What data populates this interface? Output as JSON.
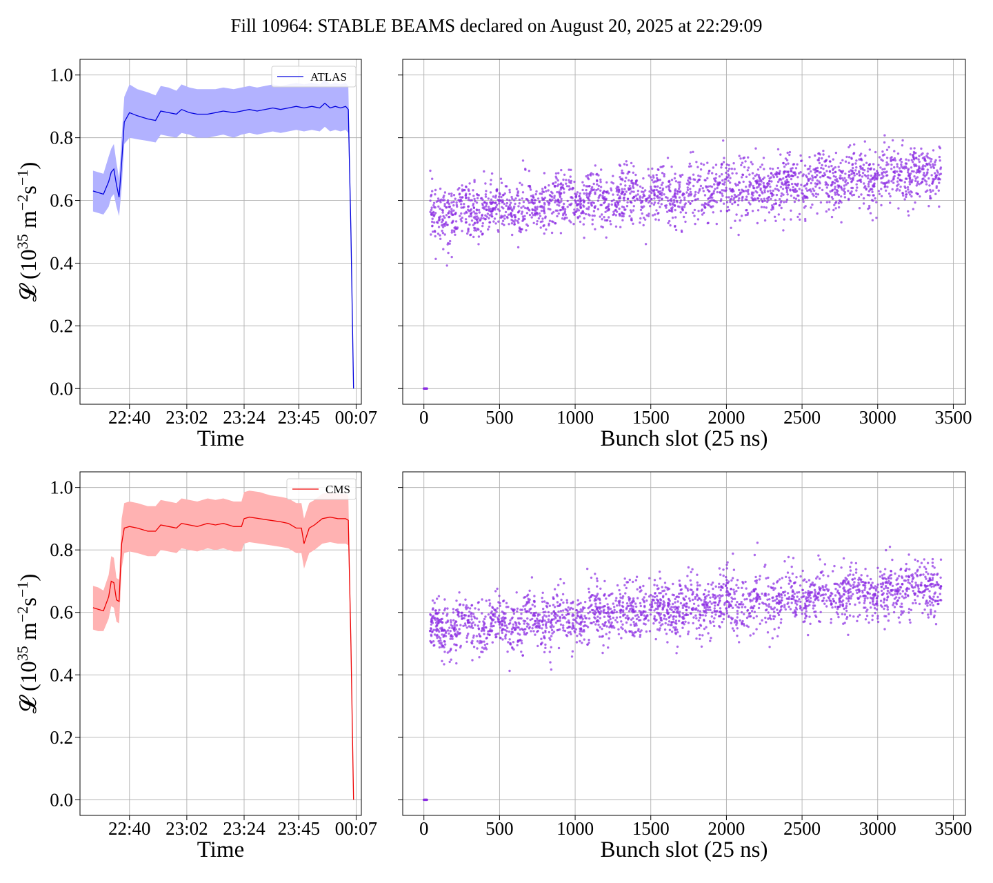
{
  "title": "Fill 10964: STABLE BEAMS declared on August 20, 2025 at 22:29:09",
  "colors": {
    "atlas": "#0000dd",
    "atlas_band": "#b2b2ff",
    "cms": "#ee0000",
    "cms_band": "#ffb2b2",
    "scatter": "#8a2be2"
  },
  "chart_data": [
    {
      "type": "area",
      "legend": "ATLAS",
      "legend_position": "top-right",
      "xlabel": "Time",
      "ylabel_parts": [
        "𝓛 (10",
        "35",
        " m",
        "−2",
        "s",
        "−1",
        ")"
      ],
      "xlim": [
        "22:21",
        "00:09"
      ],
      "ylim": [
        -0.05,
        1.05
      ],
      "xticks": [
        "22:40",
        "23:02",
        "23:24",
        "23:45",
        "00:07"
      ],
      "yticks": [
        "0.0",
        "0.2",
        "0.4",
        "0.6",
        "0.8",
        "1.0"
      ],
      "grid": true,
      "series": [
        {
          "x": [
            "22:26",
            "22:30",
            "22:32",
            "22:33",
            "22:34",
            "22:35",
            "22:36",
            "22:37",
            "22:38",
            "22:40",
            "22:43",
            "22:47",
            "22:50",
            "22:52",
            "22:55",
            "22:58",
            "23:00",
            "23:03",
            "23:06",
            "23:10",
            "23:13",
            "23:16",
            "23:20",
            "23:23",
            "23:26",
            "23:29",
            "23:32",
            "23:35",
            "23:38",
            "23:41",
            "23:44",
            "23:47",
            "23:50",
            "23:53",
            "23:55",
            "23:57",
            "23:59",
            "00:01",
            "00:03",
            "00:04",
            "00:05",
            "00:06"
          ],
          "y": [
            0.63,
            0.62,
            0.66,
            0.69,
            0.7,
            0.65,
            0.61,
            0.72,
            0.85,
            0.88,
            0.87,
            0.86,
            0.855,
            0.885,
            0.88,
            0.875,
            0.89,
            0.88,
            0.875,
            0.875,
            0.88,
            0.885,
            0.88,
            0.885,
            0.89,
            0.885,
            0.89,
            0.895,
            0.89,
            0.895,
            0.9,
            0.895,
            0.9,
            0.895,
            0.91,
            0.895,
            0.9,
            0.895,
            0.9,
            0.89,
            0.5,
            0.0
          ],
          "lower": [
            0.565,
            0.555,
            0.58,
            0.61,
            0.62,
            0.58,
            0.55,
            0.64,
            0.78,
            0.8,
            0.795,
            0.79,
            0.785,
            0.81,
            0.805,
            0.8,
            0.815,
            0.81,
            0.8,
            0.8,
            0.805,
            0.81,
            0.8,
            0.81,
            0.815,
            0.81,
            0.815,
            0.82,
            0.815,
            0.82,
            0.825,
            0.82,
            0.825,
            0.82,
            0.835,
            0.82,
            0.825,
            0.82,
            0.825,
            0.815,
            0.45,
            0.0
          ],
          "upper": [
            0.695,
            0.685,
            0.74,
            0.765,
            0.78,
            0.72,
            0.67,
            0.8,
            0.93,
            0.97,
            0.955,
            0.945,
            0.935,
            0.965,
            0.96,
            0.95,
            0.97,
            0.96,
            0.955,
            0.955,
            0.955,
            0.96,
            0.955,
            0.96,
            0.965,
            0.96,
            0.965,
            0.97,
            0.965,
            0.97,
            0.975,
            0.97,
            0.975,
            0.97,
            0.985,
            0.97,
            0.975,
            0.97,
            0.975,
            0.965,
            0.55,
            0.0
          ]
        }
      ]
    },
    {
      "type": "scatter",
      "xlabel": "Bunch slot (25 ns)",
      "xlim": [
        -140,
        3580
      ],
      "ylim": [
        -0.05,
        1.05
      ],
      "xticks": [
        "0",
        "500",
        "1000",
        "1500",
        "2000",
        "2500",
        "3000",
        "3500"
      ],
      "grid": true,
      "points": {
        "x_range": [
          40,
          3420
        ],
        "mean_start": 0.555,
        "mean_end": 0.69,
        "spread": 0.045,
        "count": 2400,
        "zero_points": [
          0,
          0.0,
          20,
          0.0
        ]
      }
    },
    {
      "type": "area",
      "legend": "CMS",
      "legend_position": "top-right",
      "xlabel": "Time",
      "ylabel_parts": [
        "𝓛 (10",
        "35",
        " m",
        "−2",
        "s",
        "−1",
        ")"
      ],
      "xlim": [
        "22:21",
        "00:09"
      ],
      "ylim": [
        -0.05,
        1.05
      ],
      "xticks": [
        "22:40",
        "23:02",
        "23:24",
        "23:45",
        "00:07"
      ],
      "yticks": [
        "0.0",
        "0.2",
        "0.4",
        "0.6",
        "0.8",
        "1.0"
      ],
      "grid": true,
      "series": [
        {
          "x": [
            "22:26",
            "22:28",
            "22:30",
            "22:32",
            "22:33",
            "22:34",
            "22:35",
            "22:36",
            "22:37",
            "22:38",
            "22:40",
            "22:43",
            "22:47",
            "22:50",
            "22:52",
            "22:55",
            "22:58",
            "23:00",
            "23:03",
            "23:06",
            "23:10",
            "23:13",
            "23:16",
            "23:20",
            "23:23",
            "23:24",
            "23:26",
            "23:30",
            "23:34",
            "23:38",
            "23:41",
            "23:44",
            "23:46",
            "23:47",
            "23:49",
            "23:51",
            "23:54",
            "23:57",
            "00:00",
            "00:03",
            "00:04",
            "00:05",
            "00:06"
          ],
          "y": [
            0.615,
            0.61,
            0.605,
            0.65,
            0.7,
            0.695,
            0.64,
            0.635,
            0.82,
            0.87,
            0.875,
            0.87,
            0.86,
            0.86,
            0.88,
            0.875,
            0.87,
            0.885,
            0.88,
            0.875,
            0.885,
            0.88,
            0.885,
            0.875,
            0.875,
            0.9,
            0.905,
            0.9,
            0.895,
            0.89,
            0.885,
            0.87,
            0.87,
            0.82,
            0.87,
            0.88,
            0.9,
            0.905,
            0.9,
            0.9,
            0.895,
            0.5,
            0.0
          ],
          "lower": [
            0.545,
            0.54,
            0.54,
            0.58,
            0.62,
            0.615,
            0.57,
            0.565,
            0.74,
            0.79,
            0.795,
            0.79,
            0.78,
            0.78,
            0.8,
            0.795,
            0.79,
            0.805,
            0.8,
            0.795,
            0.805,
            0.8,
            0.805,
            0.795,
            0.795,
            0.82,
            0.825,
            0.82,
            0.815,
            0.81,
            0.805,
            0.79,
            0.79,
            0.74,
            0.79,
            0.8,
            0.82,
            0.825,
            0.82,
            0.82,
            0.815,
            0.45,
            0.0
          ],
          "upper": [
            0.685,
            0.68,
            0.67,
            0.72,
            0.78,
            0.775,
            0.71,
            0.705,
            0.9,
            0.95,
            0.955,
            0.95,
            0.94,
            0.94,
            0.96,
            0.955,
            0.95,
            0.965,
            0.96,
            0.955,
            0.965,
            0.96,
            0.965,
            0.955,
            0.955,
            0.985,
            0.99,
            0.985,
            0.975,
            0.97,
            0.965,
            0.95,
            0.95,
            0.9,
            0.95,
            0.96,
            0.98,
            0.985,
            0.98,
            0.98,
            0.975,
            0.55,
            0.0
          ]
        }
      ]
    },
    {
      "type": "scatter",
      "xlabel": "Bunch slot (25 ns)",
      "xlim": [
        -140,
        3580
      ],
      "ylim": [
        -0.05,
        1.05
      ],
      "xticks": [
        "0",
        "500",
        "1000",
        "1500",
        "2000",
        "2500",
        "3000",
        "3500"
      ],
      "grid": true,
      "points": {
        "x_range": [
          40,
          3420
        ],
        "mean_start": 0.545,
        "mean_end": 0.685,
        "spread": 0.045,
        "count": 2400,
        "zero_points": [
          0,
          0.0,
          20,
          0.0
        ]
      }
    }
  ]
}
